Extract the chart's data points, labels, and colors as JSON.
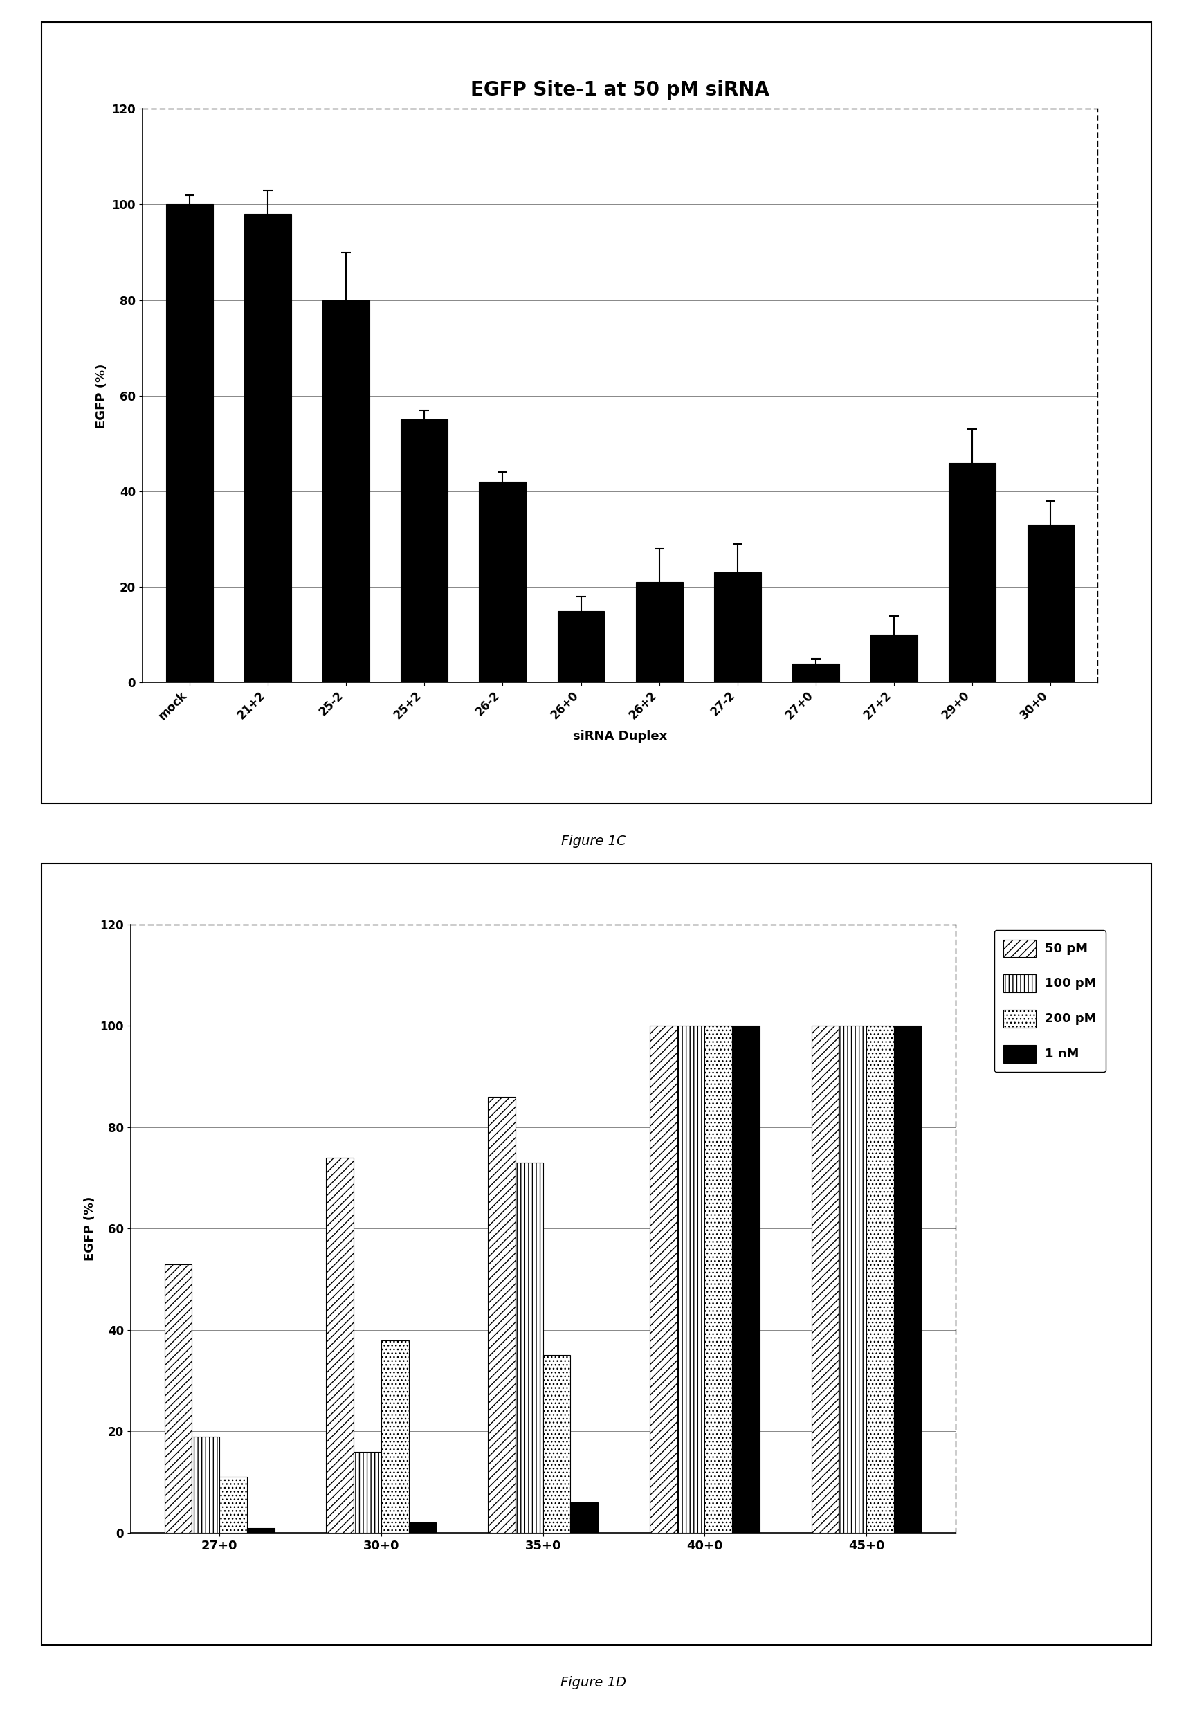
{
  "fig1c": {
    "title": "EGFP Site-1 at 50 pM siRNA",
    "categories": [
      "mock",
      "21+2",
      "25-2",
      "25+2",
      "26-2",
      "26+0",
      "26+2",
      "27-2",
      "27+0",
      "27+2",
      "29+0",
      "30+0"
    ],
    "values": [
      100,
      98,
      80,
      55,
      42,
      15,
      21,
      23,
      4,
      10,
      46,
      33
    ],
    "errors": [
      2,
      5,
      10,
      2,
      2,
      3,
      7,
      6,
      1,
      4,
      7,
      5
    ],
    "ylabel": "EGFP (%)",
    "xlabel": "siRNA Duplex",
    "ylim": [
      0,
      120
    ],
    "yticks": [
      0,
      20,
      40,
      60,
      80,
      100,
      120
    ],
    "bar_color": "#000000",
    "bar_width": 0.6
  },
  "fig1d": {
    "categories": [
      "27+0",
      "30+0",
      "35+0",
      "40+0",
      "45+0"
    ],
    "series_50pM": [
      53,
      74,
      86,
      100,
      100
    ],
    "series_100pM": [
      19,
      16,
      73,
      100,
      100
    ],
    "series_200pM": [
      11,
      38,
      35,
      100,
      100
    ],
    "series_1nM": [
      1,
      2,
      6,
      100,
      100
    ],
    "ylabel": "EGFP (%)",
    "ylim": [
      0,
      120
    ],
    "yticks": [
      0,
      20,
      40,
      60,
      80,
      100,
      120
    ],
    "bar_width": 0.17,
    "legend_labels": [
      "50 pM",
      "100 pM",
      "200 pM",
      "1 nM"
    ]
  },
  "figure1c_caption": "Figure 1C",
  "figure1d_caption": "Figure 1D"
}
